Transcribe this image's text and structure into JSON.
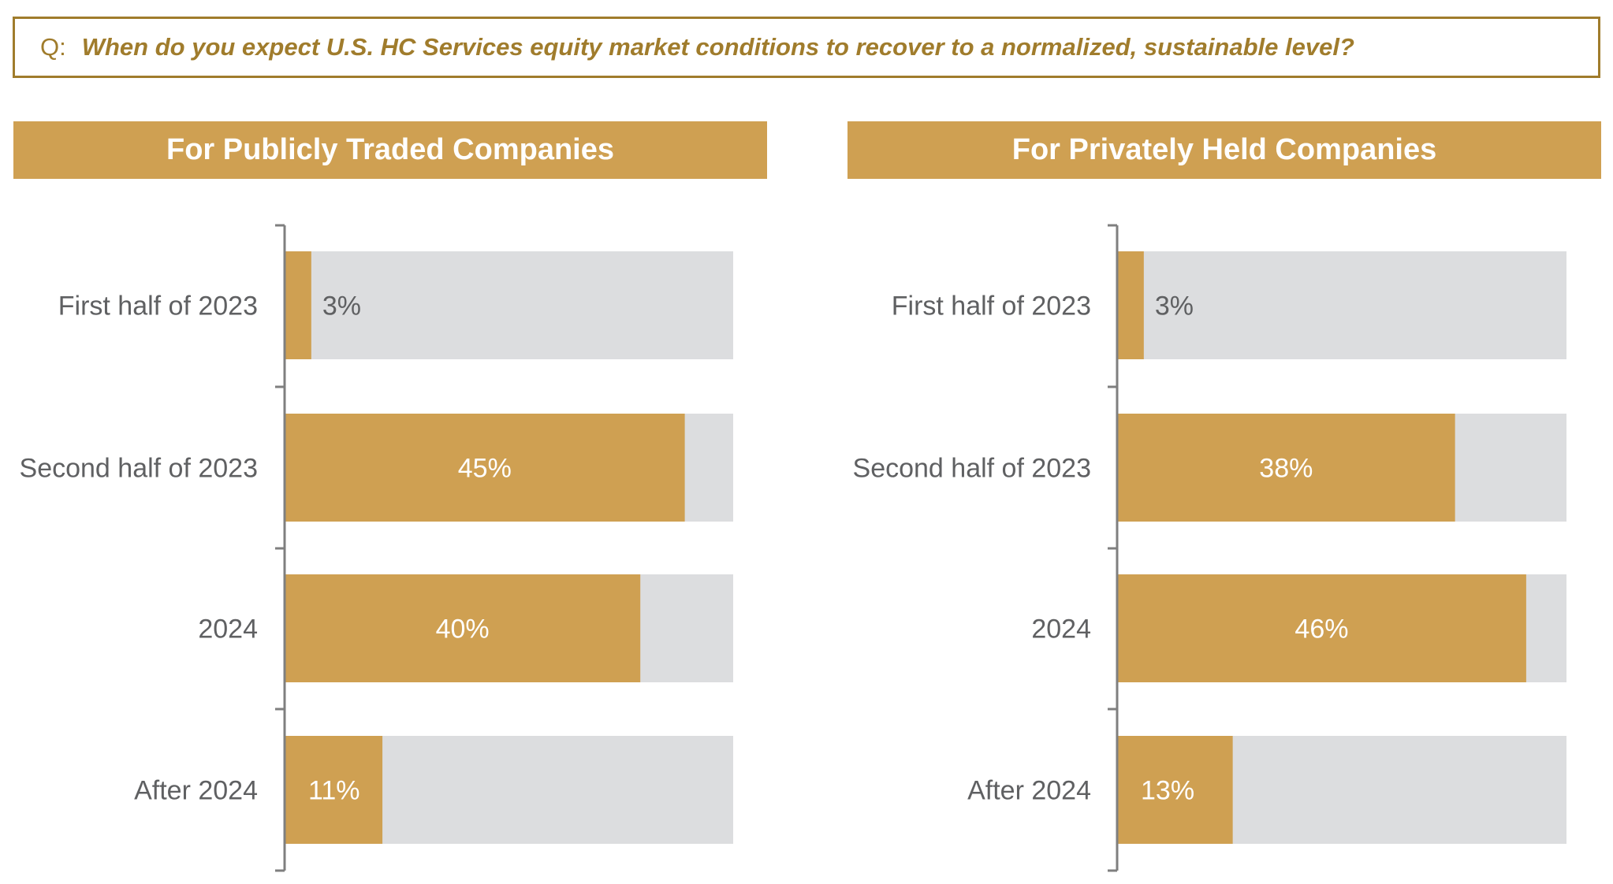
{
  "question": {
    "prefix": "Q:",
    "text": "When do you expect U.S. HC Services equity market conditions to recover to a normalized, sustainable level?"
  },
  "colors": {
    "accent": "#cfa052",
    "border": "#a07c2c",
    "track": "#dcdddf",
    "label": "#5f6062",
    "value_inside": "#ffffff",
    "value_outside": "#5f6062"
  },
  "chart_data": [
    {
      "type": "bar",
      "orientation": "horizontal",
      "title": "For Publicly Traded Companies",
      "categories": [
        "First half of 2023",
        "Second half of 2023",
        "2024",
        "After 2024"
      ],
      "values": [
        3,
        45,
        40,
        11
      ],
      "labels": [
        "3%",
        "45%",
        "40%",
        "11%"
      ],
      "xlim": [
        0,
        50
      ]
    },
    {
      "type": "bar",
      "orientation": "horizontal",
      "title": "For Privately Held Companies",
      "categories": [
        "First half of 2023",
        "Second half of 2023",
        "2024",
        "After 2024"
      ],
      "values": [
        3,
        38,
        46,
        13
      ],
      "labels": [
        "3%",
        "38%",
        "46%",
        "13%"
      ],
      "xlim": [
        0,
        50
      ]
    }
  ]
}
